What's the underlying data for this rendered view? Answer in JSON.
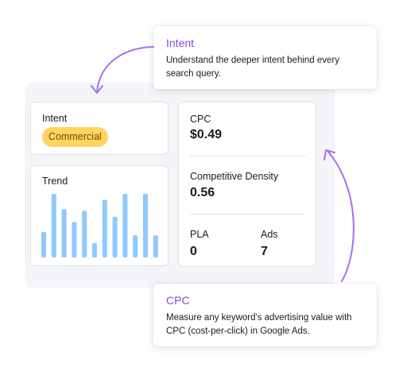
{
  "intent_card": {
    "label": "Intent",
    "badge": "Commercial",
    "badge_color": "#ffd45f"
  },
  "trend_card": {
    "label": "Trend",
    "bar_color": "#8ec9fd",
    "values": [
      30,
      75,
      57,
      42,
      55,
      17,
      68,
      48,
      75,
      26,
      75,
      26
    ]
  },
  "metrics_card": {
    "cpc_label": "CPC",
    "cpc_value": "$0.49",
    "density_label": "Competitive Density",
    "density_value": "0.56",
    "pla_label": "PLA",
    "pla_value": "0",
    "ads_label": "Ads",
    "ads_value": "7"
  },
  "callouts": {
    "intent_title": "Intent",
    "intent_text": "Understand the deeper intent behind every search query.",
    "cpc_title": "CPC",
    "cpc_text": "Measure any keyword's advertising value with CPC (cost-per-click) in Google Ads.",
    "accent_color": "#8649e1"
  }
}
